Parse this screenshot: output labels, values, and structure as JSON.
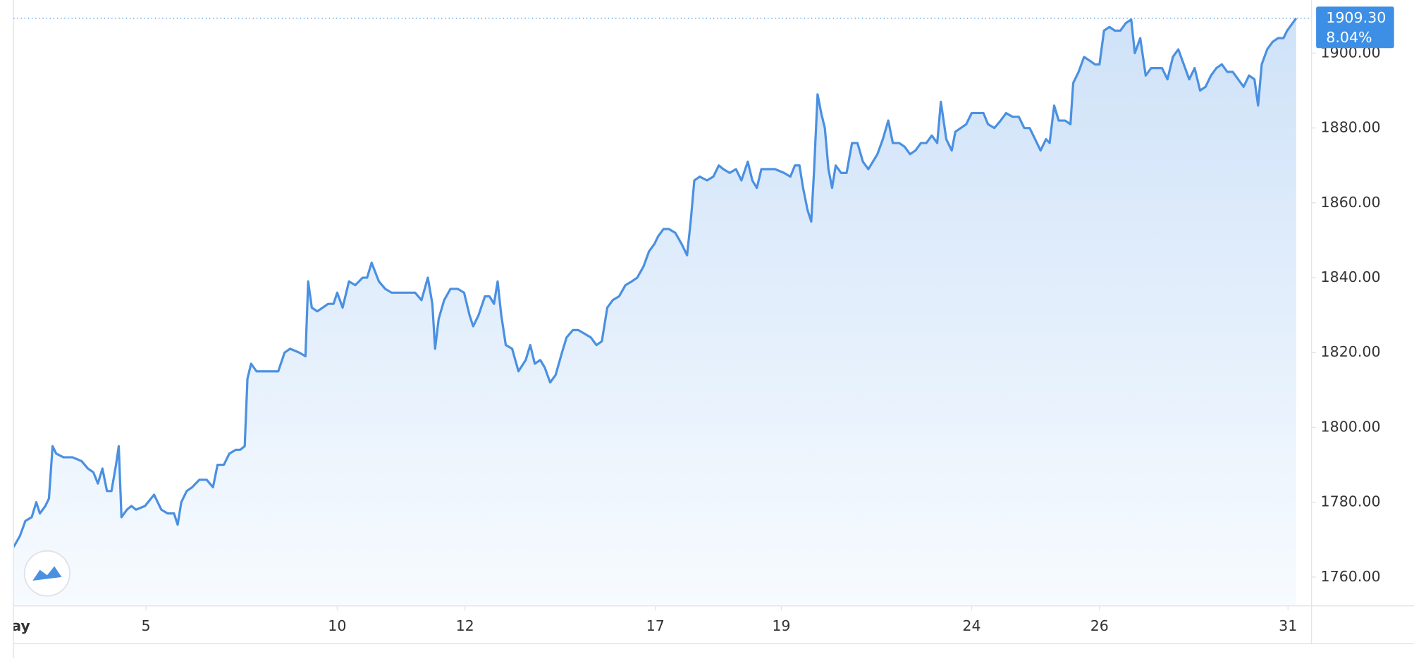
{
  "chart_data": {
    "type": "area",
    "x": [
      0,
      7,
      13,
      20,
      25,
      29,
      35,
      39,
      43,
      47,
      55,
      65,
      75,
      82,
      88,
      93,
      98,
      103,
      108,
      113,
      116,
      119,
      125,
      130,
      135,
      145,
      155,
      163,
      170,
      177,
      181,
      185,
      191,
      197,
      205,
      213,
      220,
      225,
      232,
      238,
      245,
      250,
      255,
      258,
      262,
      268,
      275,
      285,
      292,
      299,
      305,
      315,
      322,
      325,
      329,
      335,
      341,
      347,
      353,
      357,
      363,
      370,
      377,
      385,
      390,
      395,
      403,
      410,
      417,
      425,
      435,
      443,
      450,
      457,
      462,
      465,
      469,
      475,
      482,
      490,
      497,
      503,
      507,
      513,
      520,
      525,
      530,
      534,
      538,
      543,
      550,
      557,
      565,
      570,
      575,
      581,
      586,
      592,
      598,
      605,
      610,
      617,
      623,
      630,
      637,
      643,
      649,
      655,
      661,
      668,
      675,
      682,
      688,
      695,
      701,
      707,
      711,
      717,
      723,
      730,
      737,
      743,
      747,
      751,
      757,
      765,
      772,
      778,
      783,
      790,
      797,
      803,
      810,
      815,
      820,
      825,
      832,
      840,
      850,
      857,
      862,
      867,
      871,
      876,
      880,
      883,
      887,
      891,
      895,
      899,
      903,
      907,
      913,
      919,
      925,
      931,
      937,
      943,
      948,
      953,
      959,
      965,
      970,
      977,
      983,
      989,
      995,
      1001,
      1007,
      1013,
      1019,
      1023,
      1029,
      1035,
      1039,
      1045,
      1051,
      1057,
      1063,
      1070,
      1075,
      1082,
      1089,
      1095,
      1102,
      1109,
      1115,
      1121,
      1127,
      1133,
      1139,
      1143,
      1148,
      1153,
      1160,
      1166,
      1169,
      1175,
      1181,
      1187,
      1193,
      1198,
      1203,
      1209,
      1215,
      1221,
      1227,
      1233,
      1237,
      1243,
      1249,
      1255,
      1261,
      1267,
      1273,
      1279,
      1285,
      1291,
      1297,
      1303,
      1309,
      1315,
      1321,
      1327,
      1333,
      1339,
      1345,
      1351,
      1357,
      1363,
      1369,
      1373,
      1377,
      1383,
      1389,
      1395,
      1401,
      1405,
      1411,
      1415
    ],
    "values": [
      1768,
      1771,
      1775,
      1776,
      1780,
      1777,
      1779,
      1781,
      1795,
      1793,
      1792,
      1792,
      1791,
      1789,
      1788,
      1785,
      1789,
      1783,
      1783,
      1790,
      1795,
      1776,
      1778,
      1779,
      1778,
      1779,
      1782,
      1778,
      1777,
      1777,
      1774,
      1780,
      1783,
      1784,
      1786,
      1786,
      1784,
      1790,
      1790,
      1793,
      1794,
      1794,
      1795,
      1813,
      1817,
      1815,
      1815,
      1815,
      1815,
      1820,
      1821,
      1820,
      1819,
      1839,
      1832,
      1831,
      1832,
      1833,
      1833,
      1836,
      1832,
      1839,
      1838,
      1840,
      1840,
      1844,
      1839,
      1837,
      1836,
      1836,
      1836,
      1836,
      1834,
      1840,
      1833,
      1821,
      1829,
      1834,
      1837,
      1837,
      1836,
      1830,
      1827,
      1830,
      1835,
      1835,
      1833,
      1839,
      1830,
      1822,
      1821,
      1815,
      1818,
      1822,
      1817,
      1818,
      1816,
      1812,
      1814,
      1820,
      1824,
      1826,
      1826,
      1825,
      1824,
      1822,
      1823,
      1832,
      1834,
      1835,
      1838,
      1839,
      1840,
      1843,
      1847,
      1849,
      1851,
      1853,
      1853,
      1852,
      1849,
      1846,
      1855,
      1866,
      1867,
      1866,
      1867,
      1870,
      1869,
      1868,
      1869,
      1866,
      1871,
      1866,
      1864,
      1869,
      1869,
      1869,
      1868,
      1867,
      1870,
      1870,
      1864,
      1858,
      1855,
      1868,
      1889,
      1884,
      1880,
      1869,
      1864,
      1870,
      1868,
      1868,
      1876,
      1876,
      1871,
      1869,
      1871,
      1873,
      1877,
      1882,
      1876,
      1876,
      1875,
      1873,
      1874,
      1876,
      1876,
      1878,
      1876,
      1887,
      1877,
      1874,
      1879,
      1880,
      1881,
      1884,
      1884,
      1884,
      1881,
      1880,
      1882,
      1884,
      1883,
      1883,
      1880,
      1880,
      1877,
      1874,
      1877,
      1876,
      1886,
      1882,
      1882,
      1881,
      1892,
      1895,
      1899,
      1898,
      1897,
      1897,
      1906,
      1907,
      1906,
      1906,
      1908,
      1909,
      1900,
      1904,
      1894,
      1896,
      1896,
      1896,
      1893,
      1899,
      1901,
      1897,
      1893,
      1896,
      1890,
      1891,
      1894,
      1896,
      1897,
      1895,
      1895,
      1893,
      1891,
      1894,
      1893,
      1886,
      1897,
      1901,
      1903,
      1904,
      1904,
      1906,
      1908,
      1909.3
    ],
    "color": "#4a90e2",
    "xlim": [
      0,
      1432
    ],
    "xticks": [
      {
        "value": 0,
        "label": "May"
      },
      {
        "value": 146,
        "label": "5"
      },
      {
        "value": 357,
        "label": "10"
      },
      {
        "value": 498,
        "label": "12"
      },
      {
        "value": 708,
        "label": "17"
      },
      {
        "value": 847,
        "label": "19"
      },
      {
        "value": 1057,
        "label": "24"
      },
      {
        "value": 1198,
        "label": "26"
      },
      {
        "value": 1406,
        "label": "31"
      }
    ],
    "ylim": [
      1752.3,
      1914.2
    ],
    "yticks": [
      {
        "value": 1760,
        "label": "1760.00"
      },
      {
        "value": 1780,
        "label": "1780.00"
      },
      {
        "value": 1800,
        "label": "1800.00"
      },
      {
        "value": 1820,
        "label": "1820.00"
      },
      {
        "value": 1840,
        "label": "1840.00"
      },
      {
        "value": 1860,
        "label": "1860.00"
      },
      {
        "value": 1880,
        "label": "1880.00"
      },
      {
        "value": 1900,
        "label": "1900.00"
      }
    ],
    "last_price_label": "1909.30",
    "change_label": "8.04%"
  }
}
